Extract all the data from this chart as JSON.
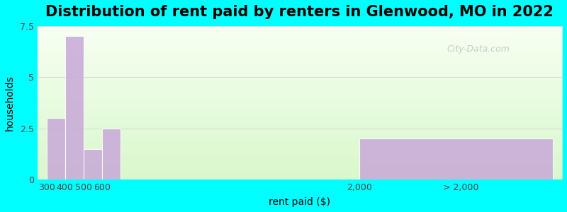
{
  "title": "Distribution of rent paid by renters in Glenwood, MO in 2022",
  "xlabel": "rent paid ($)",
  "ylabel": "households",
  "bar_positions": [
    300,
    400,
    500,
    600,
    2500
  ],
  "bar_heights": [
    3,
    7,
    1.5,
    2.5,
    2
  ],
  "bar_widths": [
    100,
    100,
    100,
    100,
    1000
  ],
  "bar_color": "#c8a8d8",
  "bar_edgecolor": "#ffffff",
  "ylim": [
    0,
    7.5
  ],
  "yticks": [
    0,
    2.5,
    5,
    7.5
  ],
  "xtick_positions": [
    300,
    400,
    500,
    600,
    2000,
    2500
  ],
  "xtick_labels": [
    "300",
    "400",
    "500",
    "600",
    "2,000",
    "> 2,000"
  ],
  "bg_color": "#00ffff",
  "plot_bg_gradient_top": "#e8f5e0",
  "plot_bg_gradient_bottom": "#f8fff0",
  "title_fontsize": 15,
  "axis_label_fontsize": 10,
  "tick_fontsize": 9,
  "watermark": "City-Data.com",
  "grid_color": "#cccccc",
  "last_bar_start": 2000
}
